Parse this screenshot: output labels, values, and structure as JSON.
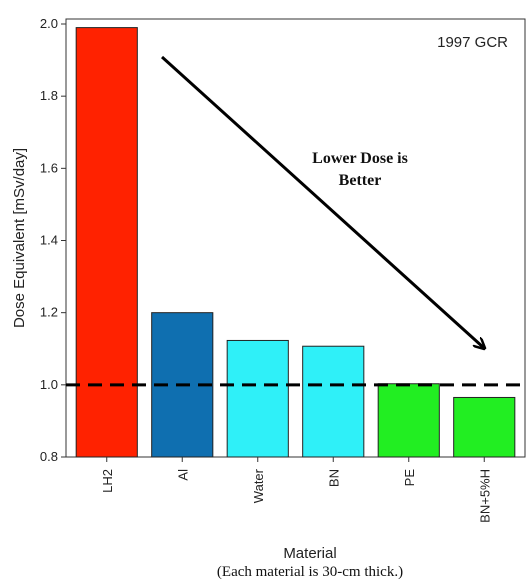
{
  "chart_data": {
    "type": "bar",
    "categories": [
      "LH2",
      "Al",
      "Water",
      "BN",
      "PE",
      "BN+5%H"
    ],
    "values": [
      1.99,
      1.2,
      1.123,
      1.107,
      1.003,
      0.965
    ],
    "colors": [
      "#ff2200",
      "#0f6fb0",
      "#2ff0f8",
      "#2ff0f8",
      "#22ee22",
      "#22ee22"
    ],
    "ylabel": "Dose Equivalent [mSv/day]",
    "xlabel": "Material",
    "caption": "(Each material is 30-cm thick.)",
    "corner_label": "1997 GCR",
    "ylim": [
      0.8,
      2.02
    ],
    "yticks": [
      "0.8",
      "1.0",
      "1.2",
      "1.4",
      "1.6",
      "1.8",
      "2.0"
    ],
    "reference_line": {
      "value": 1.0,
      "style": "dashed"
    },
    "annotation": {
      "line1": "Lower Dose is",
      "line2": "Better"
    }
  }
}
